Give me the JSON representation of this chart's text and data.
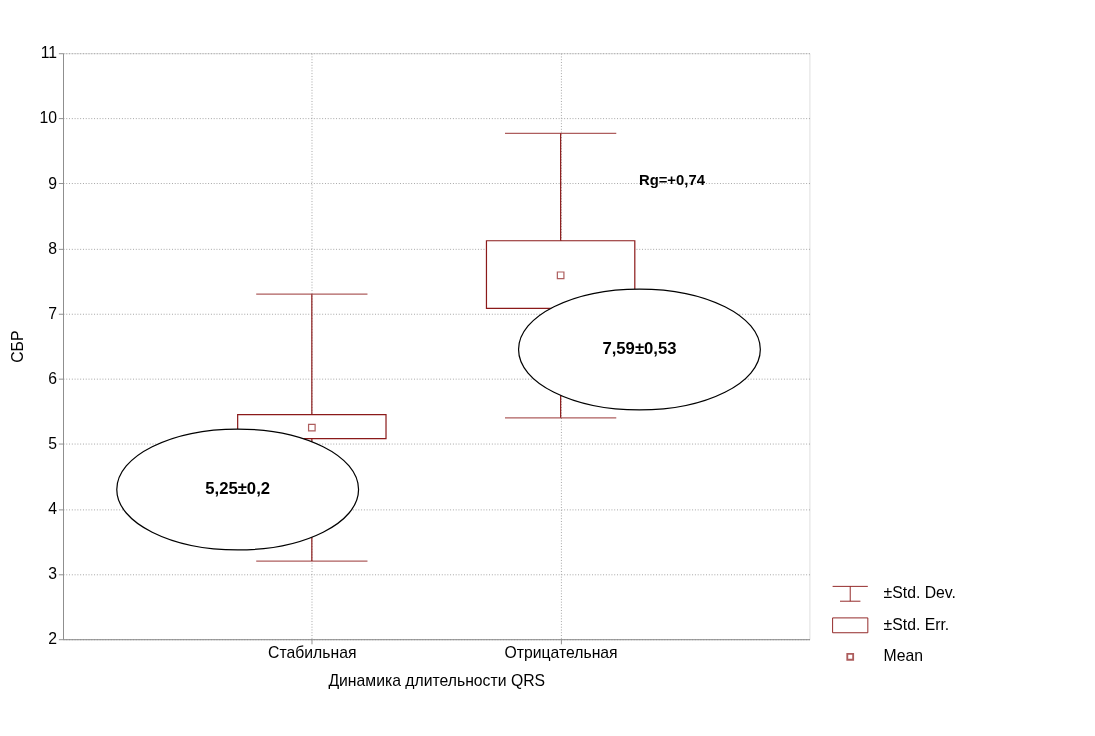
{
  "chart_data": {
    "type": "box",
    "xlabel": "Динамика длительности QRS",
    "ylabel": "СБР",
    "categories": [
      "Стабильная",
      "Отрицательная"
    ],
    "series": [
      {
        "color": "#8b1a1a",
        "boxes": [
          {
            "low": 3.2,
            "q1": 5.08,
            "q3": 5.45,
            "high": 7.3,
            "mean": 5.25
          },
          {
            "low": 5.4,
            "q1": 7.08,
            "q3": 8.12,
            "high": 9.77,
            "mean": 7.59
          }
        ]
      }
    ],
    "ylim": [
      2,
      11
    ],
    "yticks": [
      2,
      3,
      4,
      5,
      6,
      7,
      8,
      9,
      10,
      11
    ],
    "grid": true,
    "annotations": [
      "5,25±0,2",
      "7,59±0,53",
      "Rg=+0,74",
      "±Std. Dev.",
      "±Std. Err.",
      "Mean"
    ]
  }
}
